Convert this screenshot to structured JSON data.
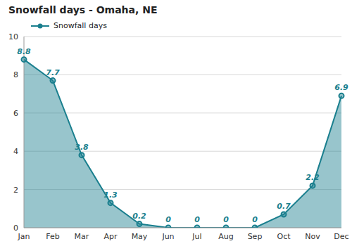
{
  "chart_data": {
    "type": "area",
    "title": "Snowfall days - Omaha, NE",
    "categories": [
      "Jan",
      "Feb",
      "Mar",
      "Apr",
      "May",
      "Jun",
      "Jul",
      "Aug",
      "Sep",
      "Oct",
      "Nov",
      "Dec"
    ],
    "series": [
      {
        "name": "Snowfall days",
        "color": "#1a7f8e",
        "values": [
          8.8,
          7.7,
          3.8,
          1.3,
          0.2,
          0,
          0,
          0,
          0,
          0.7,
          2.2,
          6.9
        ]
      }
    ],
    "ylim": [
      0,
      10
    ],
    "yticks": [
      0,
      2,
      4,
      6,
      8,
      10
    ],
    "grid": true,
    "legend": "upper left",
    "data_labels": true
  }
}
